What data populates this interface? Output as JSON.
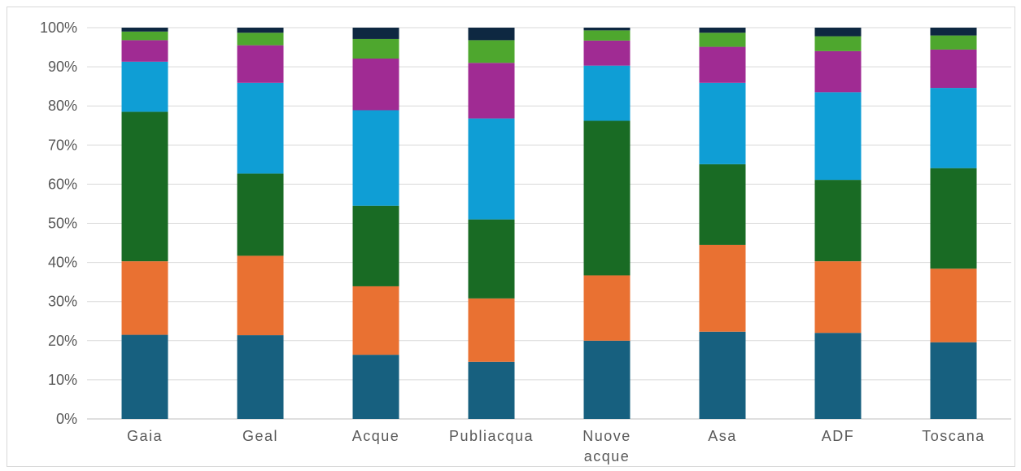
{
  "chart_data": {
    "type": "bar",
    "stacked": true,
    "title": "",
    "xlabel": "",
    "ylabel": "",
    "ylim": [
      0,
      100
    ],
    "yticks": [
      "0%",
      "10%",
      "20%",
      "30%",
      "40%",
      "50%",
      "60%",
      "70%",
      "80%",
      "90%",
      "100%"
    ],
    "grid": true,
    "legend": "none",
    "categories": [
      "Gaia",
      "Geal",
      "Acque",
      "Publiacqua",
      "Nuove acque",
      "Asa",
      "ADF",
      "Toscana"
    ],
    "category_lines": [
      [
        "Gaia"
      ],
      [
        "Geal"
      ],
      [
        "Acque"
      ],
      [
        "Publiacqua"
      ],
      [
        "Nuove",
        "acque"
      ],
      [
        "Asa"
      ],
      [
        "ADF"
      ],
      [
        "Toscana"
      ]
    ],
    "series": [
      {
        "color": "#17607f",
        "values": [
          21.5,
          21.4,
          16.4,
          14.6,
          20.0,
          22.3,
          22.0,
          19.6
        ]
      },
      {
        "color": "#e97132",
        "values": [
          18.8,
          20.3,
          17.5,
          16.2,
          16.7,
          22.2,
          18.3,
          18.8
        ]
      },
      {
        "color": "#196b24",
        "values": [
          38.2,
          21.0,
          20.6,
          20.2,
          39.5,
          20.6,
          20.8,
          25.7
        ]
      },
      {
        "color": "#0f9ed5",
        "values": [
          12.8,
          23.2,
          24.4,
          25.8,
          14.1,
          20.8,
          22.4,
          20.5
        ]
      },
      {
        "color": "#a02b93",
        "values": [
          5.5,
          9.6,
          13.2,
          14.2,
          6.4,
          9.2,
          10.5,
          9.8
        ]
      },
      {
        "color": "#4ea72e",
        "values": [
          2.2,
          3.2,
          5.0,
          5.8,
          2.6,
          3.6,
          3.8,
          3.6
        ]
      },
      {
        "color": "#0e2841",
        "values": [
          1.0,
          1.3,
          2.9,
          3.2,
          0.7,
          1.3,
          2.2,
          2.0
        ]
      }
    ]
  }
}
